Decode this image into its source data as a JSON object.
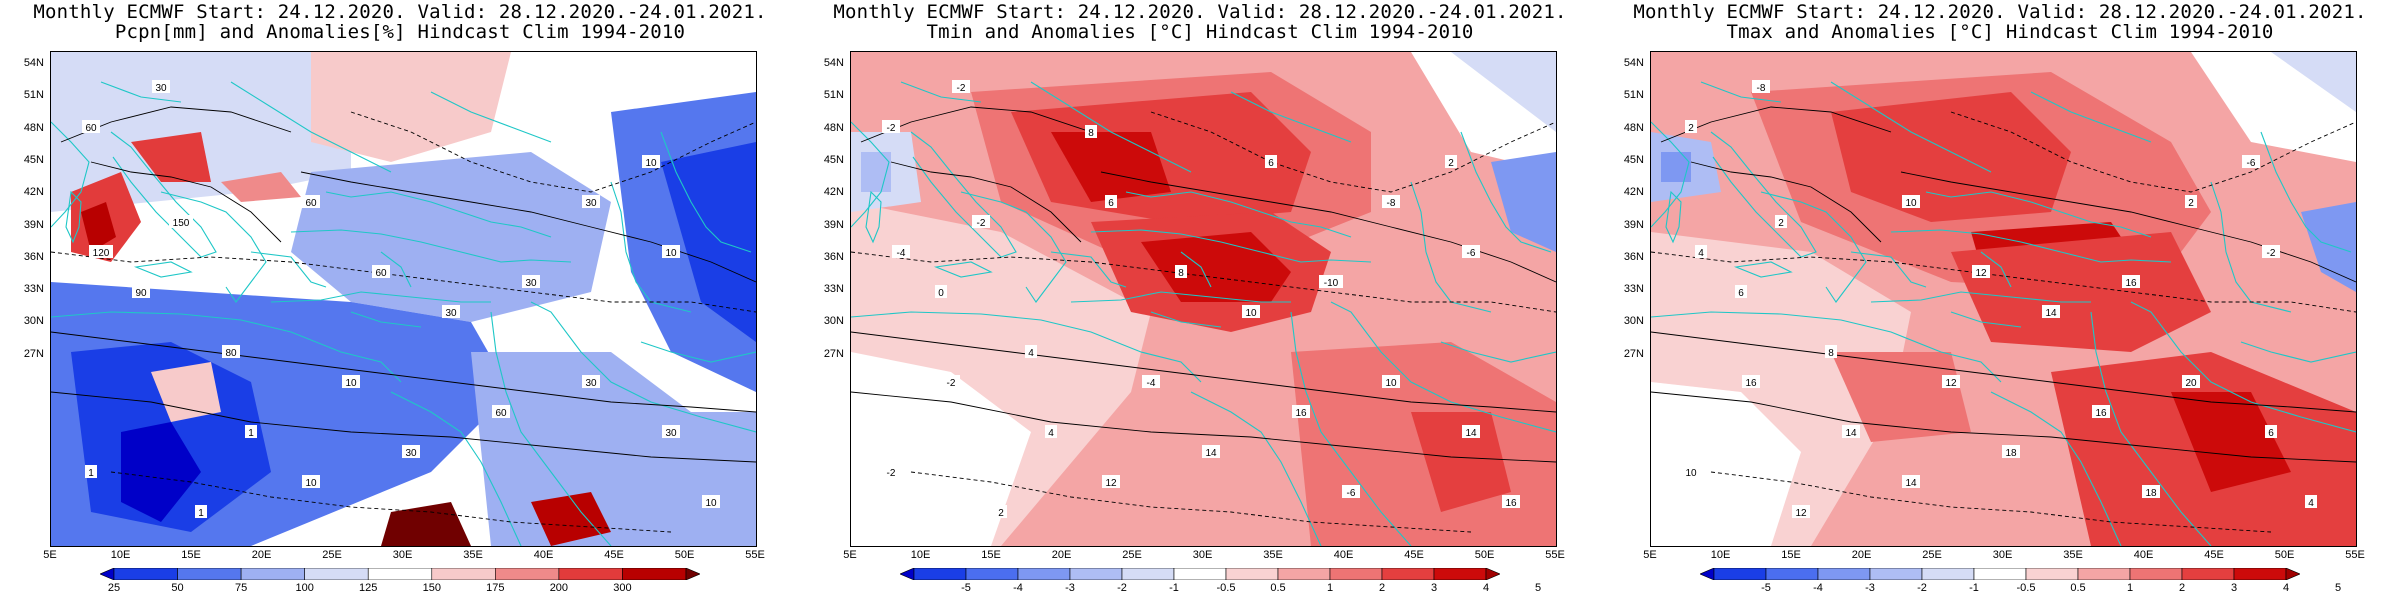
{
  "panels": [
    {
      "title1": "Monthly ECMWF Start: 24.12.2020. Valid: 28.12.2020.-24.01.2021.",
      "title2": "Pcpn[mm] and Anomalies[%] Hindcast Clim 1994-2010",
      "field": "pcpn",
      "colorbar": {
        "labels": [
          "25",
          "50",
          "75",
          "100",
          "125",
          "150",
          "175",
          "200",
          "300"
        ],
        "colors": [
          "#0000c8",
          "#1a3ee6",
          "#5577ee",
          "#9eb0f2",
          "#d5dcf6",
          "#ffffff",
          "#f7caca",
          "#ef8a8a",
          "#e23b3b",
          "#b80000",
          "#700000"
        ]
      },
      "contour_labels": [
        "60",
        "30",
        "10",
        "120",
        "150",
        "90",
        "80",
        "60",
        "60",
        "30",
        "30",
        "30",
        "10",
        "1",
        "1",
        "10",
        "30",
        "60",
        "30",
        "30",
        "10",
        "10",
        "1"
      ]
    },
    {
      "title1": "Monthly ECMWF Start: 24.12.2020. Valid: 28.12.2020.-24.01.2021.",
      "title2": "Tmin and Anomalies [°C] Hindcast Clim 1994-2010",
      "field": "tmin",
      "colorbar": {
        "labels": [
          "-5",
          "-4",
          "-3",
          "-2",
          "-1",
          "-0.5",
          "0.5",
          "1",
          "2",
          "3",
          "4",
          "5"
        ],
        "colors": [
          "#0000c8",
          "#1a3ee6",
          "#4b6ef0",
          "#7e98f2",
          "#aebdf4",
          "#d5dcf6",
          "#ffffff",
          "#f9d2d2",
          "#f4a5a5",
          "#ee7474",
          "#e43f3f",
          "#cc0a0a",
          "#a00000"
        ]
      },
      "contour_labels": [
        "-2",
        "-2",
        "2",
        "-4",
        "-2",
        "0",
        "4",
        "6",
        "8",
        "10",
        "-10",
        "-8",
        "-6",
        "-2",
        "2",
        "12",
        "14",
        "16",
        "10",
        "14",
        "16",
        "-4",
        "4",
        "-2",
        "-6",
        "6",
        "8"
      ]
    },
    {
      "title1": "Monthly ECMWF Start: 24.12.2020. Valid: 28.12.2020.-24.01.2021.",
      "title2": "Tmax and Anomalies [°C] Hindcast Clim 1994-2010",
      "field": "tmax",
      "colorbar": {
        "labels": [
          "-5",
          "-4",
          "-3",
          "-2",
          "-1",
          "-0.5",
          "0.5",
          "1",
          "2",
          "3",
          "4",
          "5"
        ],
        "colors": [
          "#0000c8",
          "#1a3ee6",
          "#4b6ef0",
          "#7e98f2",
          "#aebdf4",
          "#d5dcf6",
          "#ffffff",
          "#f9d2d2",
          "#f4a5a5",
          "#ee7474",
          "#e43f3f",
          "#cc0a0a",
          "#a00000"
        ]
      },
      "contour_labels": [
        "2",
        "-8",
        "-6",
        "4",
        "2",
        "6",
        "8",
        "10",
        "12",
        "14",
        "16",
        "2",
        "-2",
        "10",
        "12",
        "14",
        "18",
        "16",
        "20",
        "6",
        "4",
        "12",
        "14",
        "16",
        "18"
      ]
    }
  ],
  "axes": {
    "lat_ticks": [
      "54N",
      "51N",
      "48N",
      "45N",
      "42N",
      "39N",
      "36N",
      "33N",
      "30N",
      "27N"
    ],
    "lon_ticks": [
      "5E",
      "10E",
      "15E",
      "20E",
      "25E",
      "30E",
      "35E",
      "40E",
      "45E",
      "50E",
      "55E"
    ]
  },
  "style": {
    "coast_color": "#1fc7c7",
    "contour_color": "#000000",
    "frame_color": "#000000"
  }
}
